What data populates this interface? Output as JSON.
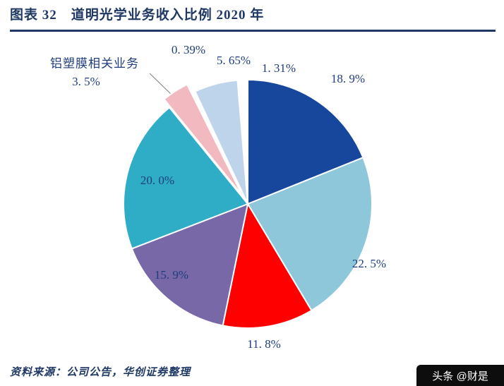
{
  "header": {
    "title": "图表 32　道明光学业务收入比例 2020 年"
  },
  "chart_data": {
    "type": "pie",
    "title": "道明光学业务收入比例 2020 年",
    "unit": "%",
    "label_color": "#1F3D7C",
    "slices": [
      {
        "label": "18. 9%",
        "value": 18.9,
        "color": "#16479D"
      },
      {
        "label": "22. 5%",
        "value": 22.5,
        "color": "#8FC7DA"
      },
      {
        "label": "11. 8%",
        "value": 11.8,
        "color": "#FF0000"
      },
      {
        "label": "15. 9%",
        "value": 15.9,
        "color": "#7868A8"
      },
      {
        "label": "20. 0%",
        "value": 20.0,
        "color": "#2FADC7"
      },
      {
        "name": "铝塑膜相关业务",
        "label": "3. 5%",
        "value": 3.5,
        "color": "#F2BAC0",
        "exploded": true
      },
      {
        "label": "0. 39%",
        "value": 0.39,
        "color": "#FFFFFF"
      },
      {
        "label": "5. 65%",
        "value": 5.65,
        "color": "#BDD4EA"
      },
      {
        "label": "1. 31%",
        "value": 1.31,
        "color": "#FFFFFF"
      }
    ]
  },
  "footer": {
    "source": "资料来源：公司公告，华创证券整理"
  },
  "watermark": {
    "text": "头条 @财是"
  }
}
